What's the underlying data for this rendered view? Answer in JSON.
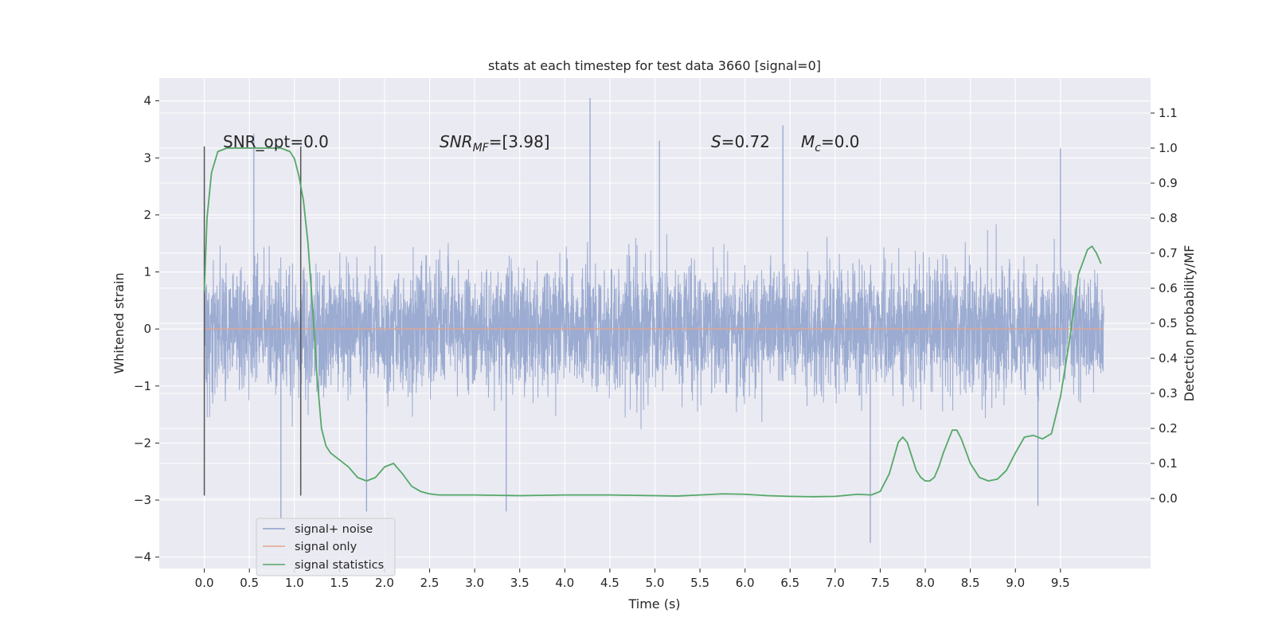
{
  "chart_data": {
    "type": "line",
    "title": "stats at each timestep for test data 3660 [signal=0]",
    "xlabel": "Time (s)",
    "ylabel_left": "Whitened strain",
    "ylabel_right": "Detection probability/MF",
    "xlim": [
      -0.5,
      10.5
    ],
    "ylim_left": [
      -4.2,
      4.4
    ],
    "ylim_right": [
      -0.2,
      1.2
    ],
    "x_ticks": [
      "0.0",
      "0.5",
      "1.0",
      "1.5",
      "2.0",
      "2.5",
      "3.0",
      "3.5",
      "4.0",
      "4.5",
      "5.0",
      "5.5",
      "6.0",
      "6.5",
      "7.0",
      "7.5",
      "8.0",
      "8.5",
      "9.0",
      "9.5"
    ],
    "y_left_ticks": [
      "−4",
      "−3",
      "−2",
      "−1",
      "0",
      "1",
      "2",
      "3",
      "4"
    ],
    "y_right_ticks": [
      "0.0",
      "0.1",
      "0.2",
      "0.3",
      "0.4",
      "0.5",
      "0.6",
      "0.7",
      "0.8",
      "0.9",
      "1.0",
      "1.1"
    ],
    "grid": true,
    "legend_position": "lower-left",
    "vertical_markers": {
      "x": [
        0.0,
        1.07
      ],
      "y_range": [
        -2.92,
        3.2
      ]
    },
    "annotations": {
      "snr_opt": "SNR_opt=0.0",
      "snr_mf_var": "SNR",
      "snr_mf_sub": "MF",
      "snr_mf_val": "=[3.98]",
      "s_var": "S",
      "s_val": "=0.72",
      "mc_var": "M",
      "mc_sub": "c",
      "mc_val": "=0.0"
    },
    "series": [
      {
        "name": "signal+ noise",
        "color": "#8da0cb",
        "axis": "left",
        "description_values": {
          "x_start": 0.0,
          "x_end": 9.98,
          "dense_range": [
            -1.5,
            1.4
          ],
          "max_spike": 4.05,
          "min_spike": -3.75
        }
      },
      {
        "name": "signal only",
        "color": "#e5a58c",
        "axis": "left",
        "x": [
          0.0,
          9.98
        ],
        "y": [
          0.0,
          0.0
        ]
      },
      {
        "name": "signal statistics",
        "color": "#55a868",
        "axis": "right",
        "x": [
          0.0,
          0.03,
          0.08,
          0.15,
          0.25,
          0.4,
          0.55,
          0.7,
          0.85,
          0.95,
          1.0,
          1.05,
          1.1,
          1.15,
          1.2,
          1.25,
          1.3,
          1.35,
          1.4,
          1.5,
          1.6,
          1.7,
          1.8,
          1.9,
          2.0,
          2.1,
          2.2,
          2.3,
          2.4,
          2.5,
          2.6,
          2.8,
          3.0,
          3.5,
          4.0,
          4.5,
          5.0,
          5.25,
          5.5,
          5.75,
          6.0,
          6.25,
          6.5,
          6.75,
          7.0,
          7.25,
          7.4,
          7.5,
          7.6,
          7.7,
          7.75,
          7.8,
          7.85,
          7.9,
          7.95,
          8.0,
          8.05,
          8.1,
          8.15,
          8.2,
          8.3,
          8.35,
          8.4,
          8.5,
          8.6,
          8.7,
          8.8,
          8.9,
          9.0,
          9.1,
          9.2,
          9.3,
          9.4,
          9.5,
          9.6,
          9.7,
          9.8,
          9.85,
          9.9,
          9.95
        ],
        "y": [
          0.59,
          0.8,
          0.93,
          0.99,
          1.0,
          1.0,
          1.0,
          1.0,
          1.0,
          0.99,
          0.97,
          0.92,
          0.85,
          0.73,
          0.55,
          0.35,
          0.2,
          0.15,
          0.13,
          0.11,
          0.09,
          0.06,
          0.05,
          0.06,
          0.09,
          0.1,
          0.07,
          0.035,
          0.02,
          0.013,
          0.01,
          0.01,
          0.01,
          0.008,
          0.01,
          0.01,
          0.008,
          0.007,
          0.01,
          0.013,
          0.012,
          0.008,
          0.006,
          0.005,
          0.006,
          0.012,
          0.01,
          0.02,
          0.07,
          0.16,
          0.175,
          0.16,
          0.12,
          0.08,
          0.06,
          0.05,
          0.05,
          0.06,
          0.09,
          0.13,
          0.195,
          0.195,
          0.17,
          0.1,
          0.06,
          0.05,
          0.055,
          0.08,
          0.13,
          0.175,
          0.18,
          0.17,
          0.185,
          0.29,
          0.45,
          0.64,
          0.71,
          0.72,
          0.7,
          0.67
        ]
      }
    ]
  }
}
